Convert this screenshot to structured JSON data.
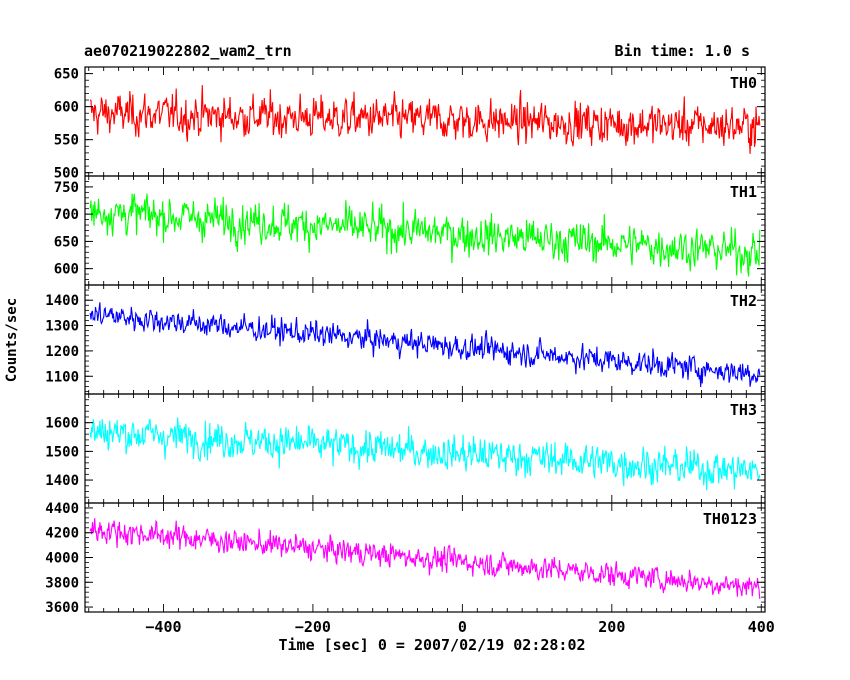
{
  "header": {
    "title_left": "ae070219022802_wam2_trn",
    "title_right": "Bin time: 1.0 s"
  },
  "axes": {
    "ylabel": "Counts/sec",
    "xlabel": "Time [sec] 0 = 2007/02/19 02:28:02"
  },
  "chart_data": {
    "type": "line",
    "title": "ae070219022802_wam2_trn",
    "subtitle": "Bin time: 1.0 s",
    "xlabel": "Time [sec] 0 = 2007/02/19 02:28:02",
    "ylabel": "Counts/sec",
    "xlim": [
      -505,
      405
    ],
    "xticks": [
      -400,
      -200,
      0,
      200,
      400
    ],
    "x_start": -498,
    "x_end": 398,
    "x_step": 1,
    "grid": false,
    "legend": "none",
    "panels": [
      {
        "name": "TH0",
        "color": "#ff0000",
        "ylim": [
          495,
          660
        ],
        "yticks": [
          500,
          550,
          600,
          650
        ],
        "trend": [
          590,
          570
        ],
        "noise_sd": 24
      },
      {
        "name": "TH1",
        "color": "#00ff00",
        "ylim": [
          570,
          770
        ],
        "yticks": [
          600,
          650,
          700,
          750
        ],
        "trend": [
          705,
          630
        ],
        "noise_sd": 28
      },
      {
        "name": "TH2",
        "color": "#0000ff",
        "ylim": [
          1030,
          1460
        ],
        "yticks": [
          1100,
          1200,
          1300,
          1400
        ],
        "trend": [
          1345,
          1110
        ],
        "noise_sd": 38
      },
      {
        "name": "TH3",
        "color": "#00ffff",
        "ylim": [
          1320,
          1700
        ],
        "yticks": [
          1400,
          1500,
          1600
        ],
        "trend": [
          1570,
          1430
        ],
        "noise_sd": 48
      },
      {
        "name": "TH0123",
        "color": "#ff00ff",
        "ylim": [
          3560,
          4440
        ],
        "yticks": [
          3600,
          3800,
          4000,
          4200,
          4400
        ],
        "trend": [
          4230,
          3760
        ],
        "noise_sd": 75
      }
    ]
  }
}
